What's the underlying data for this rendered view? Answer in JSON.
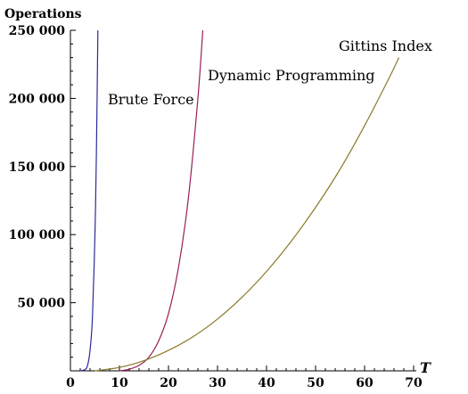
{
  "chart_data": {
    "type": "line",
    "xlabel": "T",
    "ylabel": "Operations",
    "xlim": [
      0,
      70
    ],
    "ylim": [
      0,
      250000
    ],
    "x_ticks": [
      "0",
      "10",
      "20",
      "30",
      "40",
      "50",
      "60",
      "70"
    ],
    "y_ticks": [
      "50 000",
      "100 000",
      "150 000",
      "200 000",
      "250 000"
    ],
    "grid": false,
    "series": [
      {
        "name": "Brute Force",
        "color": "#2b2b9a",
        "x": [
          2,
          3,
          3.5,
          4,
          4.5,
          5,
          5.3,
          5.6
        ],
        "y": [
          0,
          1000,
          4000,
          15000,
          40000,
          100000,
          160000,
          250000
        ]
      },
      {
        "name": "Dynamic Programming",
        "color": "#9a1e5a",
        "x": [
          10,
          12,
          14,
          16,
          18,
          20,
          22,
          24,
          26,
          27
        ],
        "y": [
          0,
          1200,
          4000,
          10000,
          22000,
          42000,
          75000,
          125000,
          200000,
          250000
        ]
      },
      {
        "name": "Gittins Index",
        "color": "#8a7a2a",
        "x": [
          5,
          10,
          15,
          20,
          25,
          30,
          35,
          40,
          45,
          50,
          55,
          60,
          65,
          67
        ],
        "y": [
          0,
          2500,
          7500,
          15000,
          25000,
          38000,
          54000,
          73000,
          95000,
          120000,
          148000,
          180000,
          215000,
          230000
        ]
      }
    ]
  }
}
